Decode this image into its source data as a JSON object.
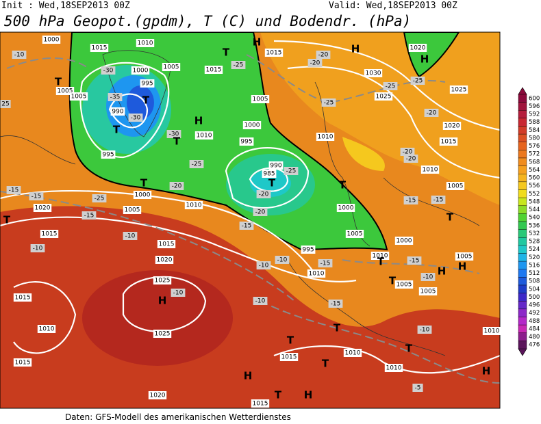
{
  "header": {
    "init": "Init : Wed,18SEP2013 00Z",
    "valid": "Valid: Wed,18SEP2013 00Z",
    "title": "500 hPa Geopot.(gpdm), T (C) und Bodendr. (hPa)"
  },
  "footer": "Daten: GFS-Modell des amerikanischen Wetterdienstes",
  "colorbar": {
    "values": [
      600,
      596,
      592,
      588,
      584,
      580,
      576,
      572,
      568,
      564,
      560,
      556,
      552,
      548,
      544,
      540,
      536,
      532,
      528,
      524,
      520,
      516,
      512,
      508,
      504,
      500,
      496,
      492,
      488,
      484,
      480,
      476
    ],
    "colors": [
      "#8c0a3c",
      "#a0143c",
      "#b41e3c",
      "#c82832",
      "#d23c28",
      "#dc5023",
      "#e6641e",
      "#eb781e",
      "#f08c1e",
      "#f5a01e",
      "#f5b41e",
      "#f5c81e",
      "#f0dc1e",
      "#c8e61e",
      "#8cdc28",
      "#50d232",
      "#32c850",
      "#28c878",
      "#1ec8a0",
      "#1ec8c8",
      "#1eb4e6",
      "#1e96f0",
      "#1e78f0",
      "#1e5adc",
      "#1e3cc8",
      "#3c28c8",
      "#6428c8",
      "#8c28c8",
      "#b428c8",
      "#c828b4",
      "#8c1e8c",
      "#5a145a"
    ]
  },
  "isobar_labels": [
    "1000",
    "1015",
    "1010",
    "1000",
    "995",
    "1005",
    "1005",
    "1005",
    "990",
    "995",
    "1015",
    "1005",
    "1000",
    "1010",
    "1010",
    "995",
    "990",
    "985",
    "1000",
    "1005",
    "1010",
    "1020",
    "1015",
    "1015",
    "1020",
    "1025",
    "1025",
    "1015",
    "1010",
    "1015",
    "1020",
    "1015",
    "1030",
    "1025",
    "1020",
    "1025",
    "1020",
    "1015",
    "1010",
    "1005",
    "1000",
    "995",
    "1005",
    "1000",
    "1010",
    "1010",
    "1005",
    "1005",
    "1005",
    "1010",
    "1010",
    "1015",
    "1015",
    "1010"
  ],
  "temperature_labels": [
    "-10",
    "-30",
    "-35",
    "-30",
    "-25",
    "-30",
    "-25",
    "-20",
    "-25",
    "-15",
    "-15",
    "-15",
    "-10",
    "-10",
    "-20",
    "-20",
    "-25",
    "-15",
    "-10",
    "-10",
    "-10",
    "-10",
    "-15",
    "-15",
    "-20",
    "-20",
    "-25",
    "-25",
    "-25",
    "-20",
    "-20",
    "-20",
    "-15",
    "-15",
    "-15",
    "-10",
    "-10",
    "-5",
    "25"
  ],
  "pressure_centers": [
    "H",
    "T",
    "T",
    "T",
    "T",
    "H",
    "T",
    "T",
    "T",
    "T",
    "T",
    "H",
    "H",
    "T",
    "T",
    "T",
    "H",
    "H",
    "H",
    "T",
    "T",
    "T",
    "T",
    "H",
    "H",
    "T",
    "H"
  ]
}
